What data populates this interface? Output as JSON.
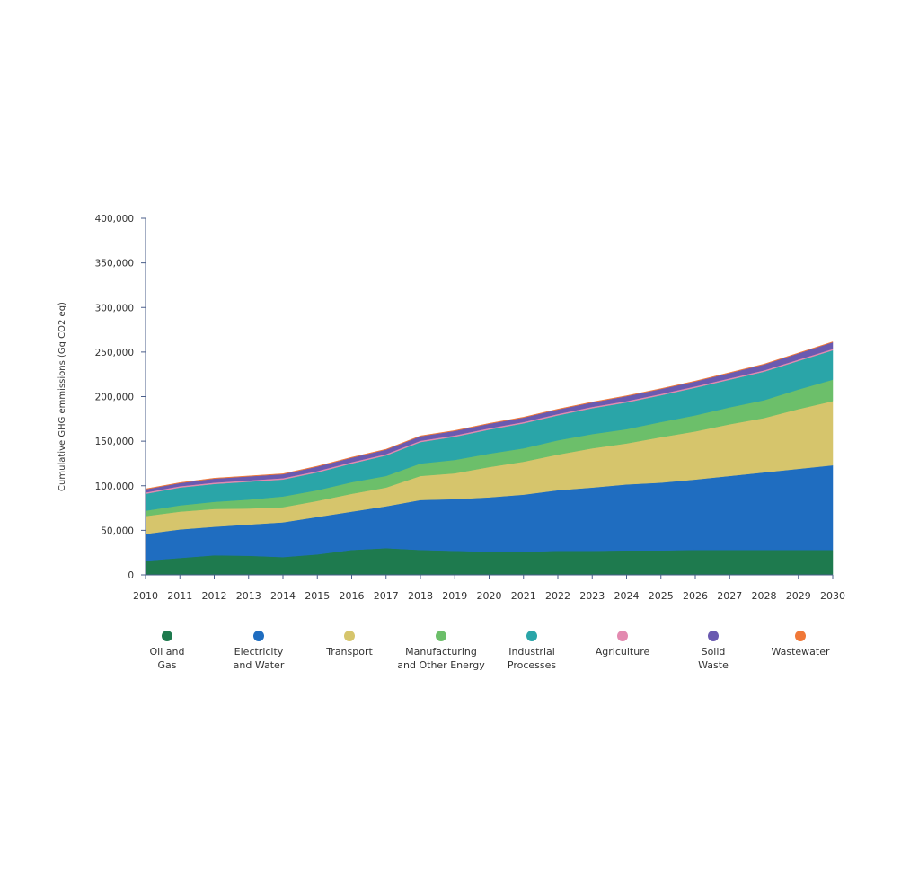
{
  "chart_data": {
    "type": "area",
    "stacked": true,
    "title": "",
    "xlabel": "",
    "ylabel": "Cumulative GHG emmissions (Gg CO2 eq)",
    "ylim": [
      0,
      400000
    ],
    "y_ticks": [
      0,
      50000,
      100000,
      150000,
      200000,
      250000,
      300000,
      350000,
      400000
    ],
    "y_tick_labels": [
      "0",
      "50,000",
      "100,000",
      "150,000",
      "200,000",
      "250,000",
      "300,000",
      "350,000",
      "400,000"
    ],
    "x": [
      "2010",
      "2011",
      "2012",
      "2013",
      "2014",
      "2015",
      "2016",
      "2017",
      "2018",
      "2019",
      "2020",
      "2021",
      "2022",
      "2023",
      "2024",
      "2025",
      "2026",
      "2027",
      "2028",
      "2029",
      "2030"
    ],
    "grid": false,
    "legend_position": "bottom",
    "series": [
      {
        "name": "Oil and Gas",
        "color": "#1e7a4e",
        "values": [
          16000,
          19000,
          22000,
          21500,
          20000,
          23000,
          28000,
          30000,
          28000,
          27000,
          26000,
          26000,
          27000,
          27000,
          27500,
          27500,
          28000,
          28000,
          28000,
          28000,
          28000
        ]
      },
      {
        "name": "Electricity and Water",
        "color": "#1f6dc0",
        "values": [
          30000,
          32000,
          32000,
          35000,
          39000,
          42000,
          43000,
          47000,
          56000,
          58000,
          61000,
          64000,
          68000,
          71000,
          74000,
          76000,
          79000,
          83000,
          87000,
          91000,
          95000
        ]
      },
      {
        "name": "Transport",
        "color": "#d6c56c",
        "values": [
          20000,
          20000,
          20000,
          18000,
          17000,
          18000,
          20000,
          21000,
          27000,
          29000,
          34000,
          37000,
          40000,
          44000,
          46000,
          51000,
          54000,
          58000,
          61000,
          67000,
          72000
        ]
      },
      {
        "name": "Manufacturing and Other Energy",
        "color": "#6cbf6a",
        "values": [
          6000,
          7000,
          8000,
          10000,
          12000,
          12000,
          13000,
          13000,
          14000,
          15000,
          15000,
          15000,
          16000,
          16000,
          16000,
          17000,
          18000,
          19000,
          20000,
          22000,
          24000
        ]
      },
      {
        "name": "Industrial Processes",
        "color": "#2aa5a8",
        "values": [
          19000,
          20000,
          20000,
          20000,
          19000,
          20000,
          21000,
          23000,
          24000,
          26000,
          27000,
          28000,
          28000,
          29000,
          30000,
          30000,
          31000,
          31000,
          32000,
          32000,
          33000
        ]
      },
      {
        "name": "Agriculture",
        "color": "#e38ab0",
        "values": [
          1500,
          1500,
          1500,
          1500,
          1500,
          1500,
          1500,
          1500,
          1500,
          1500,
          1500,
          1500,
          1500,
          1500,
          1500,
          1500,
          1500,
          1500,
          1500,
          1500,
          1500
        ]
      },
      {
        "name": "Solid Waste",
        "color": "#6a5ab0",
        "values": [
          3500,
          3500,
          4500,
          4500,
          4500,
          5000,
          5000,
          5000,
          5000,
          5000,
          5000,
          5000,
          5000,
          5000,
          5500,
          5500,
          5500,
          6000,
          6500,
          7000,
          7500
        ]
      },
      {
        "name": "Wastewater",
        "color": "#f07838",
        "values": [
          500,
          500,
          500,
          500,
          500,
          500,
          500,
          500,
          500,
          500,
          500,
          500,
          500,
          500,
          500,
          500,
          500,
          500,
          500,
          500,
          500
        ]
      }
    ],
    "legend": [
      {
        "line1": "Oil and",
        "line2": "Gas"
      },
      {
        "line1": "Electricity",
        "line2": "and Water"
      },
      {
        "line1": "Transport",
        "line2": ""
      },
      {
        "line1": "Manufacturing",
        "line2": "and Other Energy"
      },
      {
        "line1": "Industrial",
        "line2": "Processes"
      },
      {
        "line1": "Agriculture",
        "line2": ""
      },
      {
        "line1": "Solid",
        "line2": "Waste"
      },
      {
        "line1": "Wastewater",
        "line2": ""
      }
    ],
    "axis_color": "#4a5e8a"
  }
}
